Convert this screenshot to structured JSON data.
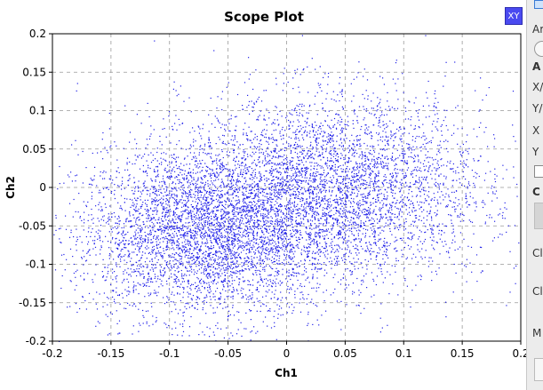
{
  "chart_data": {
    "type": "scatter",
    "title": "Scope Plot",
    "xlabel": "Ch1",
    "ylabel": "Ch2",
    "xlim": [
      -0.2,
      0.2
    ],
    "ylim": [
      -0.2,
      0.2
    ],
    "x_ticks": [
      "-0.2",
      "-0.15",
      "-0.1",
      "-0.05",
      "0",
      "0.05",
      "0.1",
      "0.15",
      "0.2"
    ],
    "y_ticks": [
      "0.2",
      "0.15",
      "0.1",
      "0.05",
      "0",
      "-0.05",
      "-0.1",
      "-0.15",
      "-0.2"
    ],
    "grid": true,
    "marker_color": "#2020e8",
    "clusters": [
      {
        "center": [
          -0.07,
          -0.06
        ],
        "spread": [
          0.055,
          0.055
        ]
      },
      {
        "center": [
          0.04,
          0.0
        ],
        "spread": [
          0.065,
          0.06
        ]
      }
    ],
    "legend": {
      "label": "XY",
      "color": "#4a4af0"
    }
  },
  "side_panel": {
    "labels": [
      "Ar",
      "A",
      "X/",
      "Y/",
      "X",
      "Y",
      "C",
      "Cl",
      "Cl",
      "M"
    ]
  }
}
